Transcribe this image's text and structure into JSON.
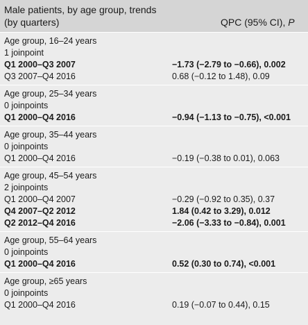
{
  "header": {
    "line1": "Male patients, by age group, trends",
    "line2": "(by quarters)",
    "col_label": "QPC (95% CI), ",
    "col_label_p": "P"
  },
  "groups": [
    {
      "prefix": "Age group",
      "age": ", 16–24 years",
      "joinpoints": "1 joinpoint",
      "rows": [
        {
          "period": "Q1 2000–Q3 2007",
          "value": "−1.73 (−2.79 to −0.66), 0.002",
          "bold": true
        },
        {
          "period": "Q3 2007–Q4 2016",
          "value": "0.68 (−0.12 to 1.48), 0.09",
          "bold": false
        }
      ]
    },
    {
      "prefix": "Age group",
      "age": ", 25–34 years",
      "joinpoints": "0 joinpoints",
      "rows": [
        {
          "period": "Q1 2000–Q4 2016",
          "value": "−0.94 (−1.13 to −0.75), <0.001",
          "bold": true
        }
      ]
    },
    {
      "prefix": "Age group",
      "age": ", 35–44 years",
      "joinpoints": "0 joinpoints",
      "rows": [
        {
          "period": "Q1 2000–Q4 2016",
          "value": "−0.19 (−0.38 to 0.01), 0.063",
          "bold": false
        }
      ]
    },
    {
      "prefix": "Age group",
      "age": ", 45–54 years",
      "joinpoints": "2 joinpoints",
      "rows": [
        {
          "period": "Q1 2000–Q4 2007",
          "value": "−0.29 (−0.92 to 0.35), 0.37",
          "bold": false
        },
        {
          "period": "Q4 2007–Q2 2012",
          "value": "1.84 (0.42 to 3.29), 0.012",
          "bold": true
        },
        {
          "period": "Q2 2012–Q4 2016",
          "value": "−2.06 (−3.33 to −0.84), 0.001",
          "bold": true
        }
      ]
    },
    {
      "prefix": "Age group",
      "age": ", 55–64 years",
      "joinpoints": "0 joinpoints",
      "rows": [
        {
          "period": "Q1 2000–Q4 2016",
          "value": "0.52 (0.30 to 0.74), <0.001",
          "bold": true
        }
      ]
    },
    {
      "prefix": "Age group",
      "age": ", ≥65 years",
      "joinpoints": "0 joinpoints",
      "rows": [
        {
          "period": "Q1 2000–Q4 2016",
          "value": "0.19 (−0.07 to 0.44), 0.15",
          "bold": false
        }
      ]
    }
  ]
}
